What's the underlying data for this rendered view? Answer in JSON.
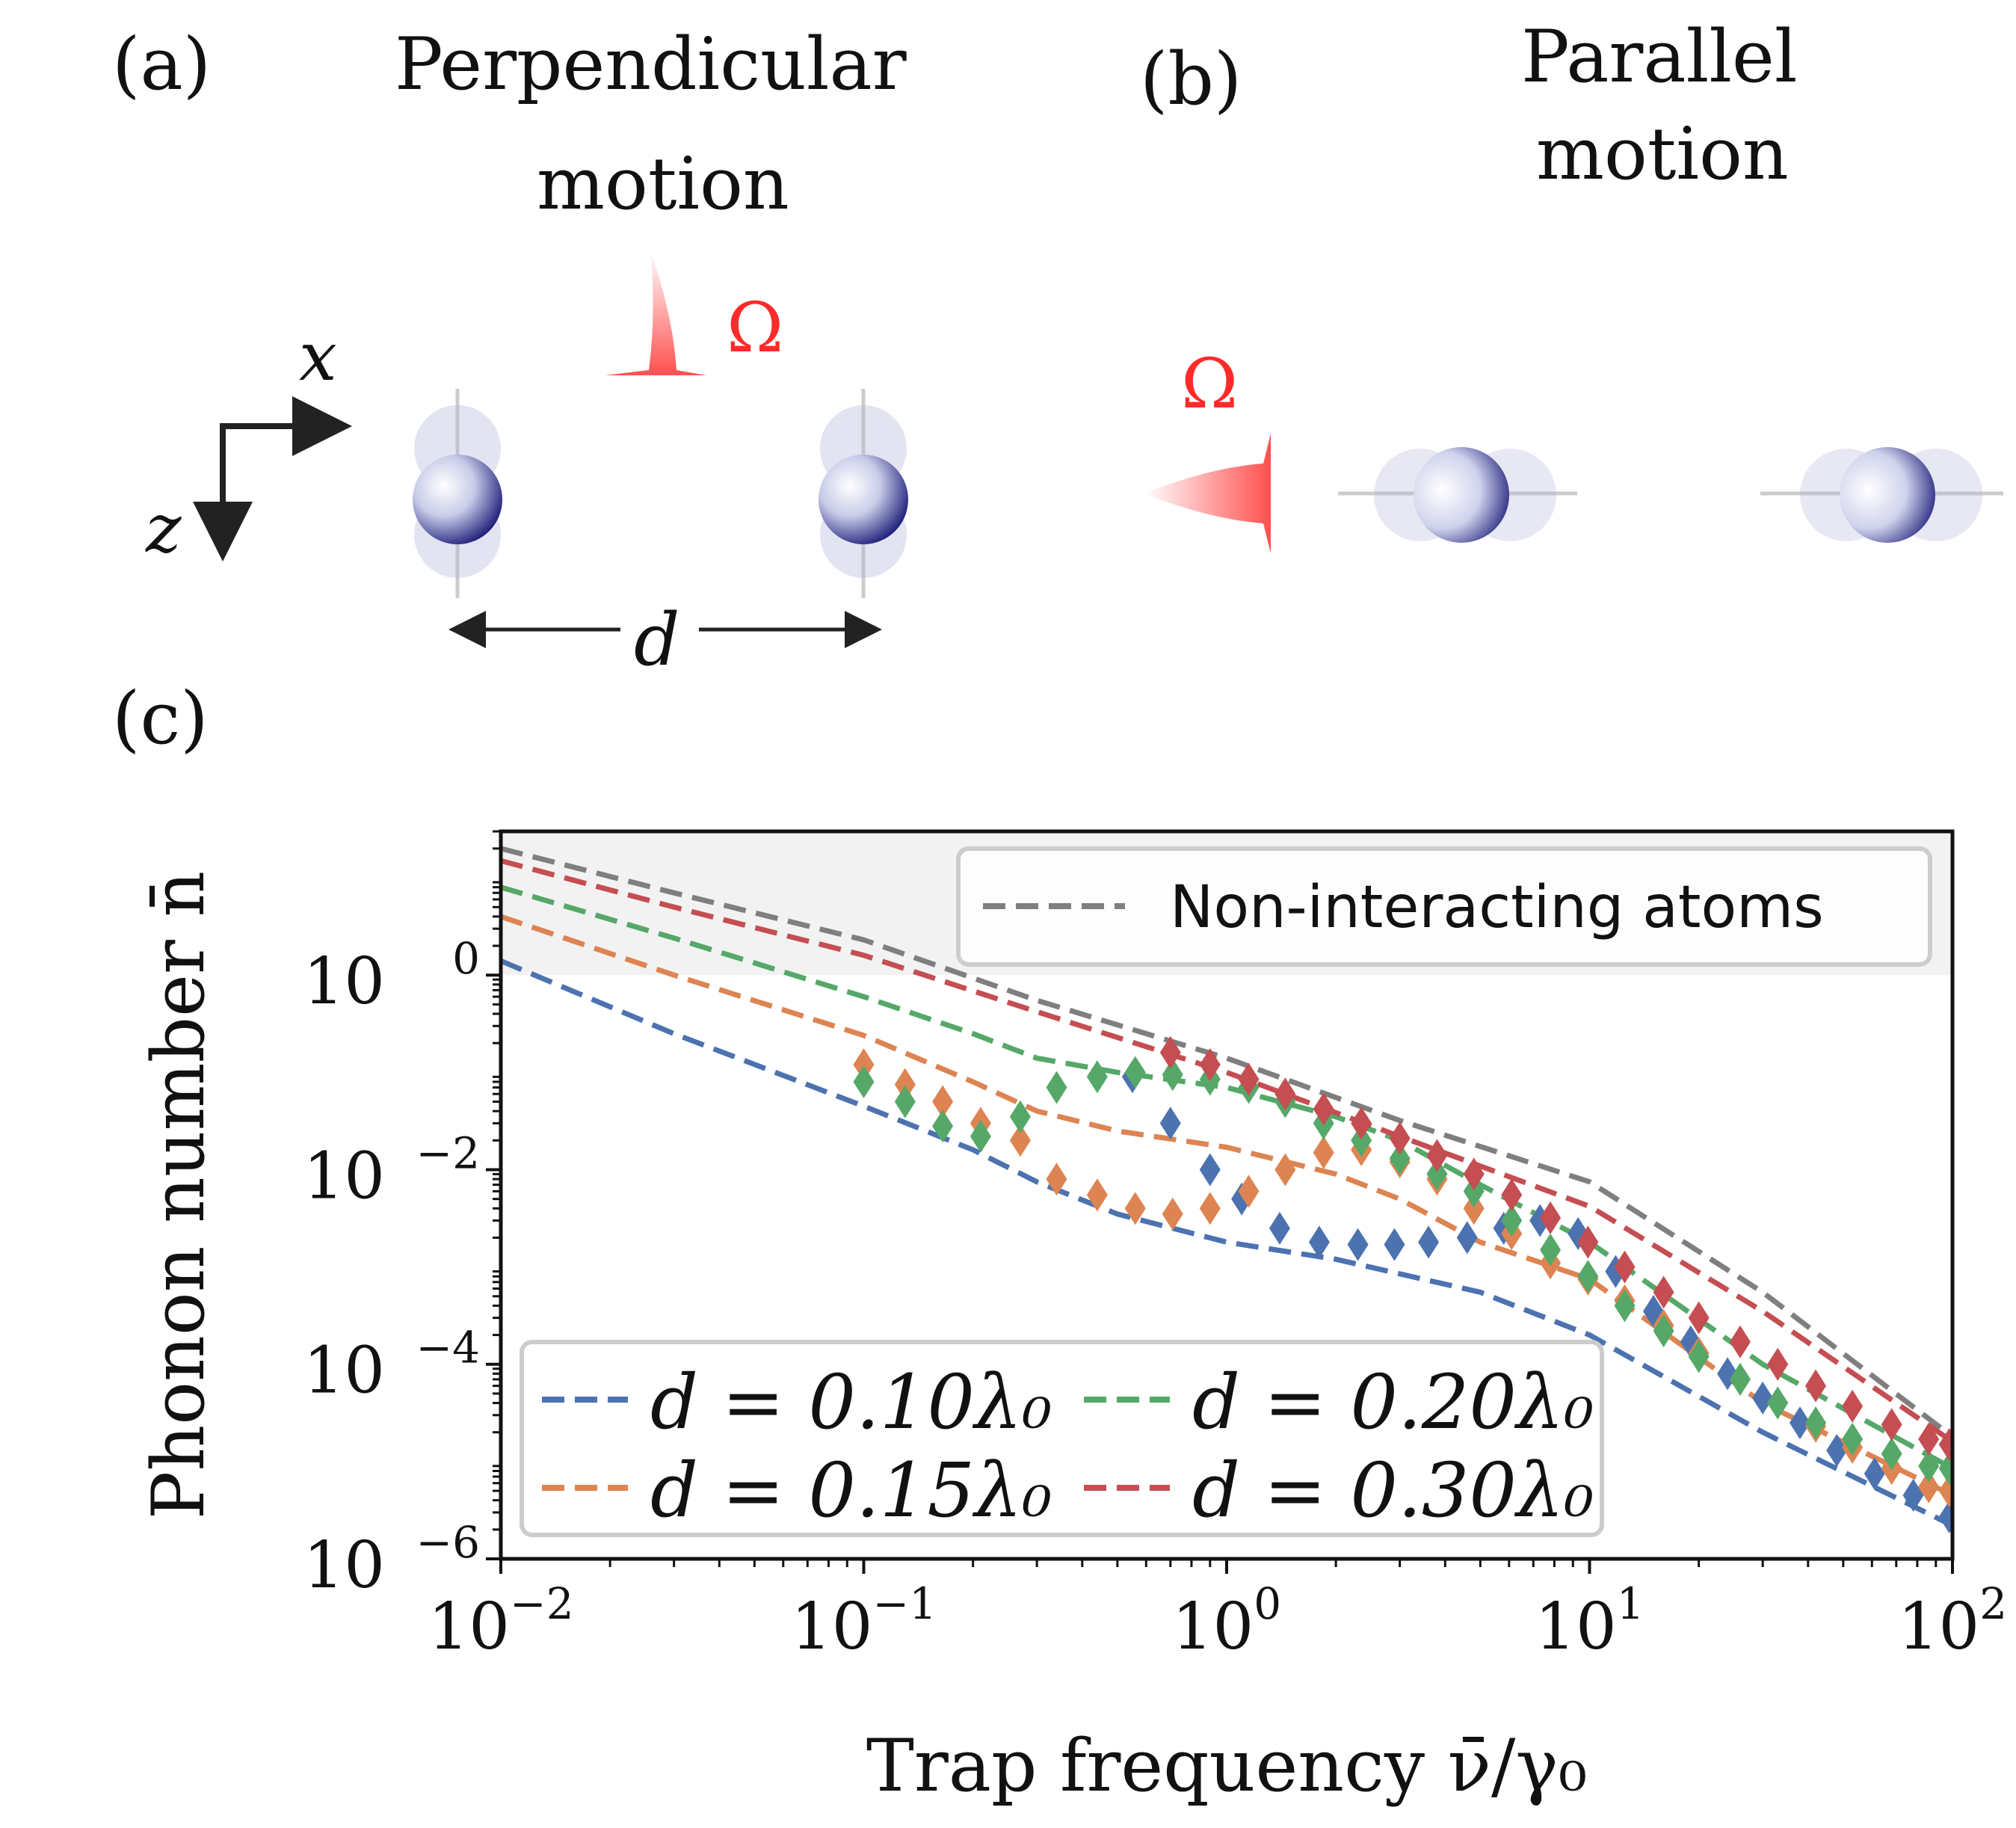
{
  "panels": {
    "a": {
      "tag": "(a)",
      "title_line1": "Perpendicular",
      "title_line2": "motion",
      "omega": "Ω",
      "axis_x": "x",
      "axis_z": "z",
      "distance": "d"
    },
    "b": {
      "tag": "(b)",
      "title_line1": "Parallel",
      "title_line2": "motion",
      "omega": "Ω"
    },
    "c": {
      "tag": "(c)"
    }
  },
  "colors": {
    "blue": "#4c72b0",
    "orange": "#dd8452",
    "green": "#55a868",
    "red": "#c44e52",
    "gray": "#7f7f7f",
    "omega": "#ff2a2a",
    "atom": "#0b0b6e"
  },
  "chart_data": {
    "type": "line",
    "xscale": "log",
    "yscale": "log",
    "xlim": [
      0.01,
      100
    ],
    "ylim": [
      1e-06,
      30
    ],
    "xlabel": "Trap frequency ν̄/γ₀",
    "ylabel": "Phonon number n̄",
    "x_ticks": [
      {
        "value": 0.01,
        "base": "10",
        "exp": "−2"
      },
      {
        "value": 0.1,
        "base": "10",
        "exp": "−1"
      },
      {
        "value": 1,
        "base": "10",
        "exp": "0"
      },
      {
        "value": 10,
        "base": "10",
        "exp": "1"
      },
      {
        "value": 100,
        "base": "10",
        "exp": "2"
      }
    ],
    "y_ticks": [
      {
        "value": 1e-06,
        "base": "10",
        "exp": "−6"
      },
      {
        "value": 0.0001,
        "base": "10",
        "exp": "−4"
      },
      {
        "value": 0.01,
        "base": "10",
        "exp": "−2"
      },
      {
        "value": 1,
        "base": "10",
        "exp": "0"
      }
    ],
    "shaded_region_y": [
      1,
      30
    ],
    "reference": {
      "name": "Non-interacting atoms",
      "color": "#7f7f7f",
      "x": [
        0.01,
        0.03,
        0.1,
        0.3,
        1,
        3,
        10,
        30,
        100
      ],
      "y": [
        20,
        7,
        2.3,
        0.55,
        0.14,
        0.032,
        0.0075,
        0.00055,
        1.8e-05
      ]
    },
    "series": [
      {
        "name": "d = 0.10λ₀",
        "color": "#4c72b0",
        "x": [
          0.01,
          0.03,
          0.1,
          0.2,
          0.3,
          0.5,
          1,
          2,
          5,
          10,
          30,
          100
        ],
        "y": [
          1.4,
          0.25,
          0.045,
          0.016,
          0.0075,
          0.0035,
          0.0018,
          0.0012,
          0.00055,
          0.0002,
          2e-05,
          2.2e-06
        ],
        "markers_x": [
          0.55,
          0.7,
          0.9,
          1.1,
          1.4,
          1.8,
          2.3,
          2.9,
          3.6,
          4.6,
          5.8,
          7.3,
          9.3,
          11.8,
          15,
          19,
          24,
          30,
          38,
          48,
          61,
          78,
          98
        ],
        "markers_y": [
          0.09,
          0.03,
          0.01,
          0.005,
          0.0025,
          0.0018,
          0.0017,
          0.0017,
          0.0018,
          0.002,
          0.0025,
          0.003,
          0.0022,
          0.0009,
          0.00035,
          0.00017,
          8e-05,
          4.5e-05,
          2.5e-05,
          1.3e-05,
          7.5e-06,
          4.5e-06,
          2.7e-06
        ]
      },
      {
        "name": "d = 0.15λ₀",
        "color": "#dd8452",
        "x": [
          0.01,
          0.03,
          0.1,
          0.2,
          0.3,
          0.5,
          1,
          2,
          3,
          5,
          10,
          30,
          100
        ],
        "y": [
          4,
          1,
          0.24,
          0.08,
          0.04,
          0.025,
          0.017,
          0.009,
          0.005,
          0.0018,
          0.00075,
          4e-05,
          4.5e-06
        ],
        "markers_x": [
          0.1,
          0.13,
          0.165,
          0.21,
          0.27,
          0.34,
          0.44,
          0.56,
          0.71,
          0.9,
          1.15,
          1.45,
          1.85,
          2.35,
          3,
          3.8,
          4.8,
          6.1,
          7.8,
          9.9,
          12.5,
          16,
          20,
          26,
          33,
          42,
          53,
          68,
          86,
          98
        ],
        "markers_y": [
          0.12,
          0.075,
          0.05,
          0.03,
          0.02,
          0.008,
          0.0055,
          0.004,
          0.0035,
          0.004,
          0.006,
          0.01,
          0.015,
          0.016,
          0.012,
          0.008,
          0.004,
          0.0022,
          0.0011,
          0.00075,
          0.00045,
          0.00025,
          0.00013,
          7e-05,
          4e-05,
          2.3e-05,
          1.4e-05,
          8.5e-06,
          5.5e-06,
          5e-06
        ]
      },
      {
        "name": "d = 0.20λ₀",
        "color": "#55a868",
        "x": [
          0.01,
          0.03,
          0.1,
          0.2,
          0.3,
          0.5,
          1,
          2,
          3,
          5,
          10,
          30,
          100
        ],
        "y": [
          8,
          2.4,
          0.6,
          0.25,
          0.14,
          0.1,
          0.07,
          0.035,
          0.02,
          0.007,
          0.0018,
          0.0001,
          8.5e-06
        ],
        "markers_x": [
          0.1,
          0.13,
          0.165,
          0.21,
          0.27,
          0.34,
          0.44,
          0.56,
          0.71,
          0.9,
          1.15,
          1.45,
          1.85,
          2.35,
          3,
          3.8,
          4.8,
          6.1,
          7.8,
          9.9,
          12.5,
          16,
          20,
          26,
          33,
          42,
          53,
          68,
          86,
          98
        ],
        "markers_y": [
          0.08,
          0.05,
          0.028,
          0.022,
          0.035,
          0.07,
          0.09,
          0.1,
          0.095,
          0.085,
          0.07,
          0.05,
          0.03,
          0.02,
          0.013,
          0.009,
          0.006,
          0.003,
          0.0015,
          0.0008,
          0.0004,
          0.00022,
          0.00012,
          7e-05,
          4e-05,
          2.5e-05,
          1.7e-05,
          1.2e-05,
          9e-06,
          8.5e-06
        ]
      },
      {
        "name": "d = 0.30λ₀",
        "color": "#c44e52",
        "x": [
          0.01,
          0.03,
          0.1,
          0.3,
          1,
          3,
          10,
          30,
          100
        ],
        "y": [
          15,
          5,
          1.6,
          0.42,
          0.1,
          0.022,
          0.0042,
          0.00035,
          1.6e-05
        ],
        "markers_x": [
          0.7,
          0.9,
          1.15,
          1.45,
          1.85,
          2.35,
          3,
          3.8,
          4.8,
          6.1,
          7.8,
          9.9,
          12.5,
          16,
          20,
          26,
          33,
          42,
          53,
          68,
          86,
          98
        ],
        "markers_y": [
          0.16,
          0.12,
          0.085,
          0.06,
          0.042,
          0.03,
          0.021,
          0.014,
          0.009,
          0.0055,
          0.0032,
          0.0018,
          0.001,
          0.00055,
          0.0003,
          0.00017,
          0.0001,
          6e-05,
          3.7e-05,
          2.4e-05,
          1.7e-05,
          1.5e-05
        ]
      }
    ]
  }
}
